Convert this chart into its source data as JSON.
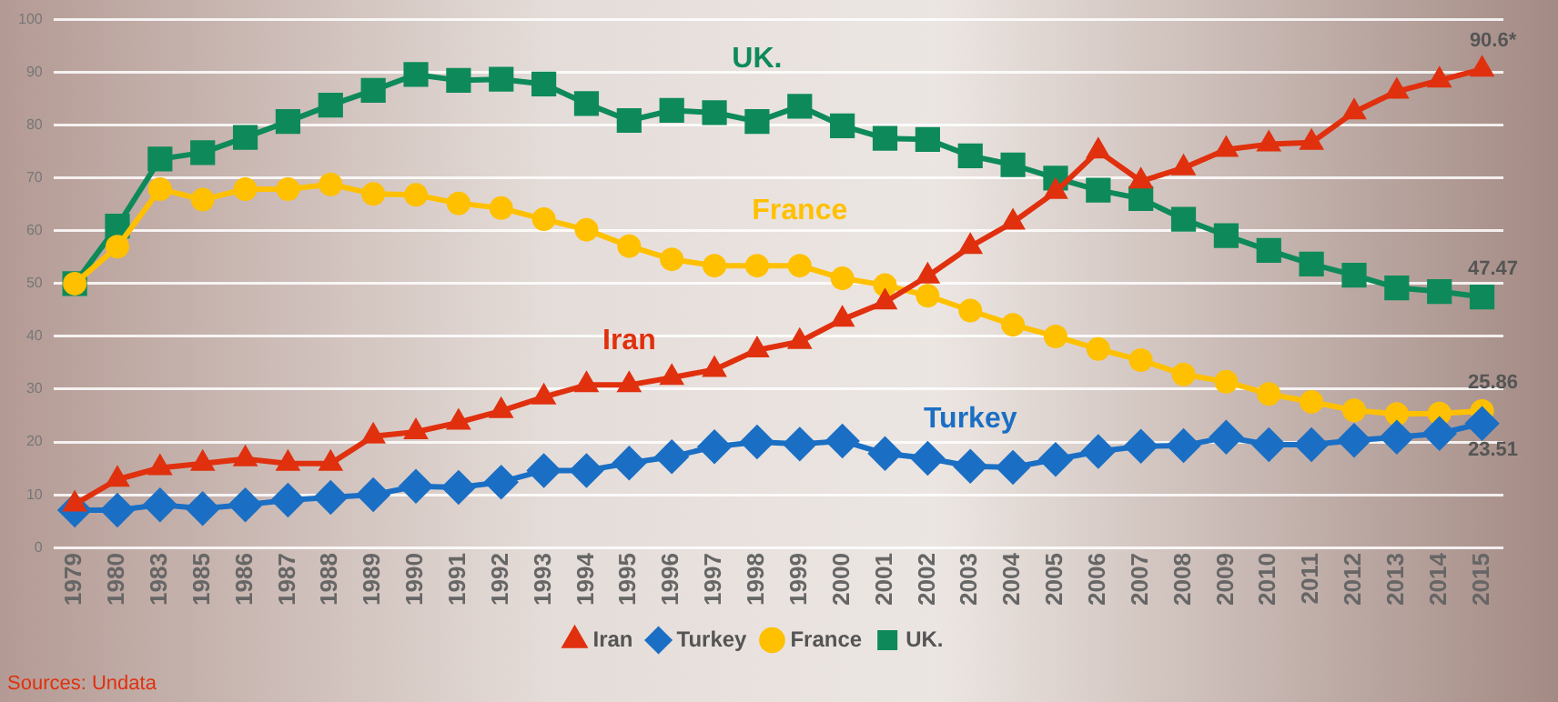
{
  "chart_data": {
    "type": "line",
    "categories": [
      "1979",
      "1980",
      "1983",
      "1985",
      "1986",
      "1987",
      "1988",
      "1989",
      "1990",
      "1991",
      "1992",
      "1993",
      "1994",
      "1995",
      "1996",
      "1997",
      "1998",
      "1999",
      "2000",
      "2001",
      "2002",
      "2003",
      "2004",
      "2005",
      "2006",
      "2007",
      "2008",
      "2009",
      "2010",
      "2011",
      "2012",
      "2013",
      "2014",
      "2015"
    ],
    "series": [
      {
        "name": "Iran",
        "color": "#e0300e",
        "marker": "triangle",
        "values": [
          8.2,
          12.9,
          15.1,
          15.9,
          16.8,
          15.9,
          15.9,
          21.1,
          21.9,
          23.7,
          25.9,
          28.5,
          30.8,
          30.8,
          32.2,
          33.7,
          37.4,
          39.0,
          43.2,
          46.5,
          51.4,
          57.0,
          61.6,
          67.4,
          75.1,
          69.4,
          71.9,
          75.4,
          76.4,
          76.7,
          82.5,
          86.4,
          88.5,
          90.6
        ],
        "value_labels": [
          null,
          null,
          null,
          null,
          null,
          null,
          null,
          null,
          null,
          null,
          null,
          null,
          null,
          null,
          null,
          null,
          null,
          null,
          null,
          null,
          null,
          null,
          null,
          null,
          null,
          null,
          null,
          null,
          null,
          null,
          null,
          null,
          null,
          "90.6*"
        ]
      },
      {
        "name": "Turkey",
        "color": "#1a6fc4",
        "marker": "diamond",
        "values": [
          7.1,
          7.1,
          8.1,
          7.4,
          8.1,
          9.0,
          9.5,
          10.0,
          11.6,
          11.4,
          12.4,
          14.6,
          14.6,
          16.0,
          17.2,
          19.1,
          20.0,
          19.6,
          20.2,
          17.8,
          16.9,
          15.4,
          15.2,
          16.7,
          18.2,
          19.2,
          19.3,
          20.9,
          19.5,
          19.5,
          20.3,
          20.9,
          21.6,
          23.51
        ],
        "value_labels": [
          null,
          null,
          null,
          null,
          null,
          null,
          null,
          null,
          null,
          null,
          null,
          null,
          null,
          null,
          null,
          null,
          null,
          null,
          null,
          null,
          null,
          null,
          null,
          null,
          null,
          null,
          null,
          null,
          null,
          null,
          null,
          null,
          null,
          "23.51"
        ]
      },
      {
        "name": "France",
        "color": "#ffc000",
        "marker": "circle",
        "values": [
          50,
          57.0,
          67.9,
          65.9,
          67.9,
          67.9,
          68.8,
          67.0,
          66.8,
          65.2,
          64.3,
          62.2,
          60.2,
          57.1,
          54.6,
          53.4,
          53.4,
          53.4,
          51.0,
          49.7,
          47.7,
          44.9,
          42.2,
          40.0,
          37.6,
          35.5,
          32.8,
          31.4,
          29.1,
          27.6,
          26.0,
          25.3,
          25.4,
          25.86
        ],
        "value_labels": [
          null,
          null,
          null,
          null,
          null,
          null,
          null,
          null,
          null,
          null,
          null,
          null,
          null,
          null,
          null,
          null,
          null,
          null,
          null,
          null,
          null,
          null,
          null,
          null,
          null,
          null,
          null,
          null,
          null,
          null,
          null,
          null,
          null,
          "25.86"
        ]
      },
      {
        "name": "UK.",
        "color": "#0e8a5a",
        "marker": "square",
        "values": [
          50,
          60.9,
          73.6,
          74.8,
          77.7,
          80.7,
          83.8,
          86.6,
          89.6,
          88.5,
          88.7,
          87.8,
          84.1,
          80.9,
          82.8,
          82.4,
          80.7,
          83.6,
          79.9,
          77.5,
          77.3,
          74.2,
          72.5,
          70.0,
          67.7,
          66.1,
          62.2,
          59.1,
          56.3,
          53.7,
          51.6,
          49.2,
          48.5,
          47.47
        ],
        "value_labels": [
          null,
          null,
          null,
          null,
          null,
          null,
          null,
          null,
          null,
          null,
          null,
          null,
          null,
          null,
          null,
          null,
          null,
          null,
          null,
          null,
          null,
          null,
          null,
          null,
          null,
          null,
          null,
          null,
          null,
          null,
          null,
          null,
          null,
          "47.47"
        ]
      }
    ],
    "ylim": [
      0,
      100
    ],
    "yticks": [
      0,
      10,
      20,
      30,
      40,
      50,
      60,
      70,
      80,
      90,
      100
    ],
    "grid": "y",
    "legend": "bottom",
    "annotations": [
      "Sources: Undata"
    ]
  }
}
